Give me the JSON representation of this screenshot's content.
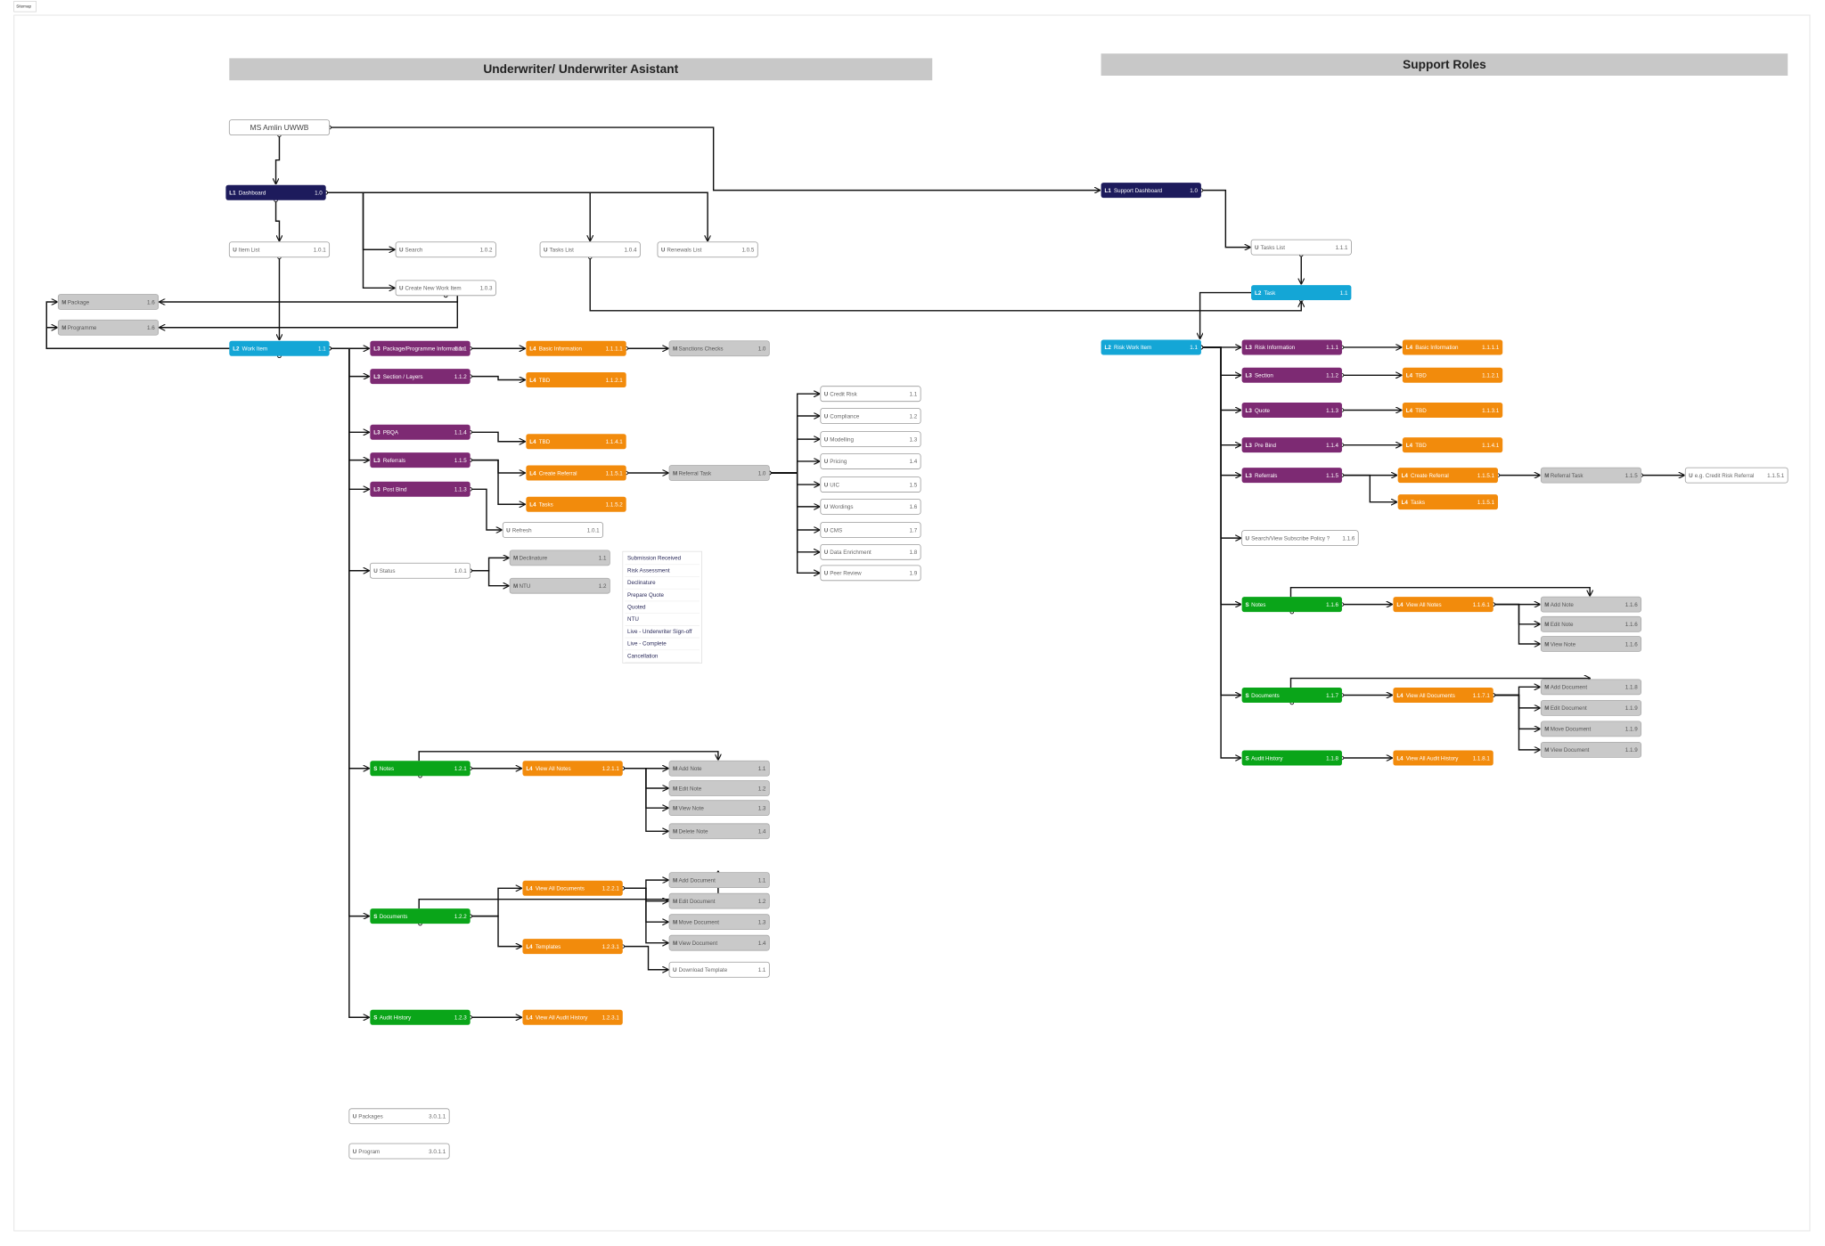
{
  "header": {
    "label": "Sitemap"
  },
  "sections": [
    "Underwriter/ Underwriter Asistant",
    "Support Roles"
  ],
  "nodes": [
    {
      "label": "MS Amlin UWWB"
    },
    {
      "prefix": "L1",
      "label": "Dashboard",
      "code": "1.0"
    },
    {
      "prefix": "U",
      "label": "Item List",
      "code": "1.0.1"
    },
    {
      "prefix": "U",
      "label": "Search",
      "code": "1.0.2"
    },
    {
      "prefix": "U",
      "label": "Create New Work Item",
      "code": "1.0.3"
    },
    {
      "prefix": "U",
      "label": "Tasks List",
      "code": "1.0.4"
    },
    {
      "prefix": "U",
      "label": "Renewals List",
      "code": "1.0.5"
    },
    {
      "prefix": "M",
      "label": "Package",
      "code": "1.6"
    },
    {
      "prefix": "M",
      "label": "Programme",
      "code": "1.6"
    },
    {
      "prefix": "L2",
      "label": "Work Item",
      "code": "1.1"
    },
    {
      "prefix": "L3",
      "label": "Package/Programme Information",
      "code": "1.1.1"
    },
    {
      "prefix": "L4",
      "label": "Basic Information",
      "code": "1.1.1.1"
    },
    {
      "prefix": "M",
      "label": "Sanctions Checks",
      "code": "1.0"
    },
    {
      "prefix": "L3",
      "label": "Section / Layers",
      "code": "1.1.2"
    },
    {
      "prefix": "L4",
      "label": "TBD",
      "code": "1.1.2.1"
    },
    {
      "prefix": "L3",
      "label": "PBQA",
      "code": "1.1.4"
    },
    {
      "prefix": "L4",
      "label": "TBD",
      "code": "1.1.4.1"
    },
    {
      "prefix": "L3",
      "label": "Referrals",
      "code": "1.1.5"
    },
    {
      "prefix": "L4",
      "label": "Create Referral",
      "code": "1.1.5.1"
    },
    {
      "prefix": "M",
      "label": "Referral Task",
      "code": "1.0"
    },
    {
      "prefix": "L4",
      "label": "Tasks",
      "code": "1.1.5.2"
    },
    {
      "prefix": "L3",
      "label": "Post Bind",
      "code": "1.1.3"
    },
    {
      "prefix": "U",
      "label": "Refresh",
      "code": "1.0.1"
    },
    {
      "prefix": "U",
      "label": "Status",
      "code": "1.0.1"
    },
    {
      "prefix": "M",
      "label": "Declinature",
      "code": "1.1"
    },
    {
      "prefix": "M",
      "label": "NTU",
      "code": "1.2"
    },
    {
      "prefix": "U",
      "label": "Credit Risk",
      "code": "1.1"
    },
    {
      "prefix": "U",
      "label": "Compliance",
      "code": "1.2"
    },
    {
      "prefix": "U",
      "label": "Modelling",
      "code": "1.3"
    },
    {
      "prefix": "U",
      "label": "Pricing",
      "code": "1.4"
    },
    {
      "prefix": "U",
      "label": "UIC",
      "code": "1.5"
    },
    {
      "prefix": "U",
      "label": "Wordings",
      "code": "1.6"
    },
    {
      "prefix": "U",
      "label": "CMS",
      "code": "1.7"
    },
    {
      "prefix": "U",
      "label": "Data Enrichment",
      "code": "1.8"
    },
    {
      "prefix": "U",
      "label": "Peer Review",
      "code": "1.9"
    },
    {
      "prefix": "S",
      "label": "Notes",
      "code": "1.2.1"
    },
    {
      "prefix": "L4",
      "label": "View All Notes",
      "code": "1.2.1.1"
    },
    {
      "prefix": "M",
      "label": "Add Note",
      "code": "1.1"
    },
    {
      "prefix": "M",
      "label": "Edit Note",
      "code": "1.2"
    },
    {
      "prefix": "M",
      "label": "View Note",
      "code": "1.3"
    },
    {
      "prefix": "M",
      "label": "Delete Note",
      "code": "1.4"
    },
    {
      "prefix": "S",
      "label": "Documents",
      "code": "1.2.2"
    },
    {
      "prefix": "L4",
      "label": "View All Documents",
      "code": "1.2.2.1"
    },
    {
      "prefix": "L4",
      "label": "Templates",
      "code": "1.2.3.1"
    },
    {
      "prefix": "M",
      "label": "Add Document",
      "code": "1.1"
    },
    {
      "prefix": "M",
      "label": "Edit Document",
      "code": "1.2"
    },
    {
      "prefix": "M",
      "label": "Move Document",
      "code": "1.3"
    },
    {
      "prefix": "M",
      "label": "View Document",
      "code": "1.4"
    },
    {
      "prefix": "U",
      "label": "Download Template",
      "code": "1.1"
    },
    {
      "prefix": "S",
      "label": "Audit History",
      "code": "1.2.3"
    },
    {
      "prefix": "L4",
      "label": "View All Audit History",
      "code": "1.2.3.1"
    },
    {
      "prefix": "U",
      "label": "Packages",
      "code": "3.0.1.1"
    },
    {
      "prefix": "U",
      "label": "Program",
      "code": "3.0.1.1"
    },
    {
      "prefix": "L1",
      "label": "Support Dashboard",
      "code": "1.0"
    },
    {
      "prefix": "U",
      "label": "Tasks List",
      "code": "1.1.1"
    },
    {
      "prefix": "L2",
      "label": "Task",
      "code": "1.1"
    },
    {
      "prefix": "L2",
      "label": "Risk Work Item",
      "code": "1.1"
    },
    {
      "prefix": "L3",
      "label": "Risk Information",
      "code": "1.1.1"
    },
    {
      "prefix": "L4",
      "label": "Basic Information",
      "code": "1.1.1.1"
    },
    {
      "prefix": "L3",
      "label": "Section",
      "code": "1.1.2"
    },
    {
      "prefix": "L4",
      "label": "TBD",
      "code": "1.1.2.1"
    },
    {
      "prefix": "L3",
      "label": "Quote",
      "code": "1.1.3"
    },
    {
      "prefix": "L4",
      "label": "TBD",
      "code": "1.1.3.1"
    },
    {
      "prefix": "L3",
      "label": "Pre Bind",
      "code": "1.1.4"
    },
    {
      "prefix": "L4",
      "label": "TBD",
      "code": "1.1.4.1"
    },
    {
      "prefix": "L3",
      "label": "Referrals",
      "code": "1.1.5"
    },
    {
      "prefix": "L4",
      "label": "Create Referral",
      "code": "1.1.5.1"
    },
    {
      "prefix": "M",
      "label": "Referral Task",
      "code": "1.1.5"
    },
    {
      "prefix": "U",
      "label": "e.g. Credit Risk Referral",
      "code": "1.1.5.1"
    },
    {
      "prefix": "L4",
      "label": "Tasks",
      "code": "1.1.5.1"
    },
    {
      "prefix": "U",
      "label": "Search/View Subscribe Policy ?",
      "code": "1.1.6"
    },
    {
      "prefix": "S",
      "label": "Notes",
      "code": "1.1.6"
    },
    {
      "prefix": "L4",
      "label": "View All Notes",
      "code": "1.1.6.1"
    },
    {
      "prefix": "M",
      "label": "Add Note",
      "code": "1.1.6"
    },
    {
      "prefix": "M",
      "label": "Edit Note",
      "code": "1.1.6"
    },
    {
      "prefix": "M",
      "label": "View Note",
      "code": "1.1.6"
    },
    {
      "prefix": "S",
      "label": "Documents",
      "code": "1.1.7"
    },
    {
      "prefix": "L4",
      "label": "View All Documents",
      "code": "1.1.7.1"
    },
    {
      "prefix": "M",
      "label": "Add Document",
      "code": "1.1.8"
    },
    {
      "prefix": "M",
      "label": "Edit Document",
      "code": "1.1.9"
    },
    {
      "prefix": "M",
      "label": "Move Document",
      "code": "1.1.9"
    },
    {
      "prefix": "M",
      "label": "View Document",
      "code": "1.1.9"
    },
    {
      "prefix": "S",
      "label": "Audit History",
      "code": "1.1.8"
    },
    {
      "prefix": "L4",
      "label": "View All Audit History",
      "code": "1.1.8.1"
    }
  ],
  "status_list": [
    "Submission Received",
    "Risk Assessment",
    "Declinature",
    "Prepare Quote",
    "Quoted",
    "NTU",
    "Live - Underwriter Sign-off",
    "Live - Complete",
    "Cancellation"
  ]
}
